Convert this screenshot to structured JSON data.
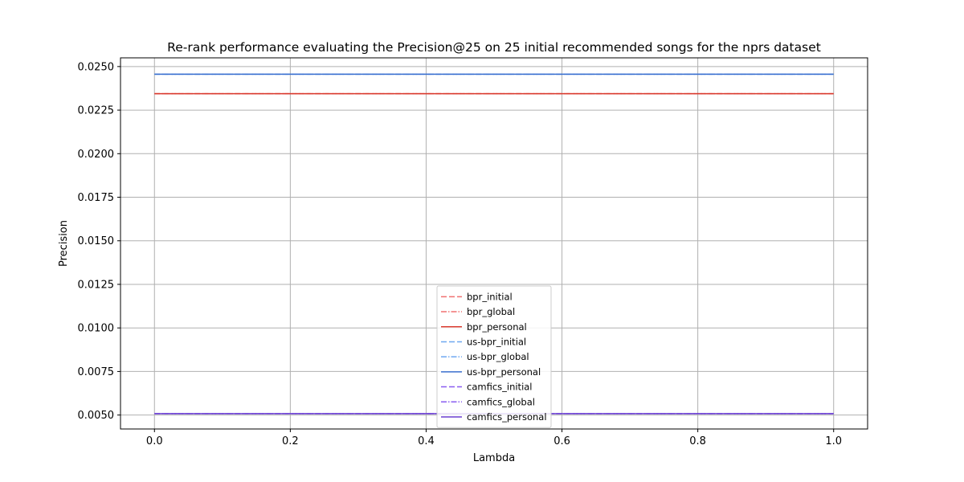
{
  "chart_data": {
    "type": "line",
    "title": "Re-rank performance evaluating the Precision@25 on 25 initial recommended songs for the nprs dataset",
    "xlabel": "Lambda",
    "ylabel": "Precision",
    "xlim": [
      -0.05,
      1.05
    ],
    "ylim": [
      0.0042,
      0.0255
    ],
    "grid": true,
    "legend_position": "lower-center",
    "x_ticks": [
      0.0,
      0.2,
      0.4,
      0.6,
      0.8,
      1.0
    ],
    "x_tick_labels": [
      "0.0",
      "0.2",
      "0.4",
      "0.6",
      "0.8",
      "1.0"
    ],
    "y_ticks": [
      0.005,
      0.0075,
      0.01,
      0.0125,
      0.015,
      0.0175,
      0.02,
      0.0225,
      0.025
    ],
    "y_tick_labels": [
      "0.0050",
      "0.0075",
      "0.0100",
      "0.0125",
      "0.0150",
      "0.0175",
      "0.0200",
      "0.0225",
      "0.0250"
    ],
    "x": [
      0.0,
      0.1,
      0.2,
      0.3,
      0.4,
      0.5,
      0.6,
      0.7,
      0.8,
      0.9,
      1.0
    ],
    "series": [
      {
        "name": "bpr_initial",
        "color": "#f07070",
        "dash": "dashed",
        "values": [
          0.02344,
          0.02344,
          0.02344,
          0.02344,
          0.02344,
          0.02344,
          0.02344,
          0.02344,
          0.02344,
          0.02344,
          0.02344
        ]
      },
      {
        "name": "bpr_global",
        "color": "#f07070",
        "dash": "dashdot",
        "values": [
          0.02344,
          0.02344,
          0.02344,
          0.02344,
          0.02344,
          0.02344,
          0.02344,
          0.02344,
          0.02344,
          0.02344,
          0.02344
        ]
      },
      {
        "name": "bpr_personal",
        "color": "#d93a2e",
        "dash": "solid",
        "values": [
          0.02344,
          0.02344,
          0.02344,
          0.02344,
          0.02344,
          0.02344,
          0.02344,
          0.02344,
          0.02344,
          0.02344,
          0.02344
        ]
      },
      {
        "name": "us-bpr_initial",
        "color": "#6fa8f0",
        "dash": "dashed",
        "values": [
          0.02456,
          0.02456,
          0.02456,
          0.02456,
          0.02456,
          0.02456,
          0.02456,
          0.02456,
          0.02456,
          0.02456,
          0.02456
        ]
      },
      {
        "name": "us-bpr_global",
        "color": "#6fa8f0",
        "dash": "dashdot",
        "values": [
          0.02456,
          0.02456,
          0.02456,
          0.02456,
          0.02456,
          0.02456,
          0.02456,
          0.02456,
          0.02456,
          0.02456,
          0.02456
        ]
      },
      {
        "name": "us-bpr_personal",
        "color": "#3a6fcf",
        "dash": "solid",
        "values": [
          0.02456,
          0.02456,
          0.02456,
          0.02456,
          0.02456,
          0.02456,
          0.02456,
          0.02456,
          0.02456,
          0.02456,
          0.02456
        ]
      },
      {
        "name": "camfics_initial",
        "color": "#8a5cf0",
        "dash": "dashed",
        "values": [
          0.00508,
          0.00508,
          0.00508,
          0.00508,
          0.00508,
          0.00508,
          0.00508,
          0.00508,
          0.00508,
          0.00508,
          0.00508
        ]
      },
      {
        "name": "camfics_global",
        "color": "#8a5cf0",
        "dash": "dashdot",
        "values": [
          0.00508,
          0.00508,
          0.00508,
          0.00508,
          0.00508,
          0.00508,
          0.00508,
          0.00508,
          0.00508,
          0.00508,
          0.00508
        ]
      },
      {
        "name": "camfics_personal",
        "color": "#6a3fd0",
        "dash": "solid",
        "values": [
          0.00508,
          0.00508,
          0.00508,
          0.00508,
          0.00508,
          0.00508,
          0.00508,
          0.00508,
          0.00508,
          0.00508,
          0.00508
        ]
      }
    ]
  }
}
